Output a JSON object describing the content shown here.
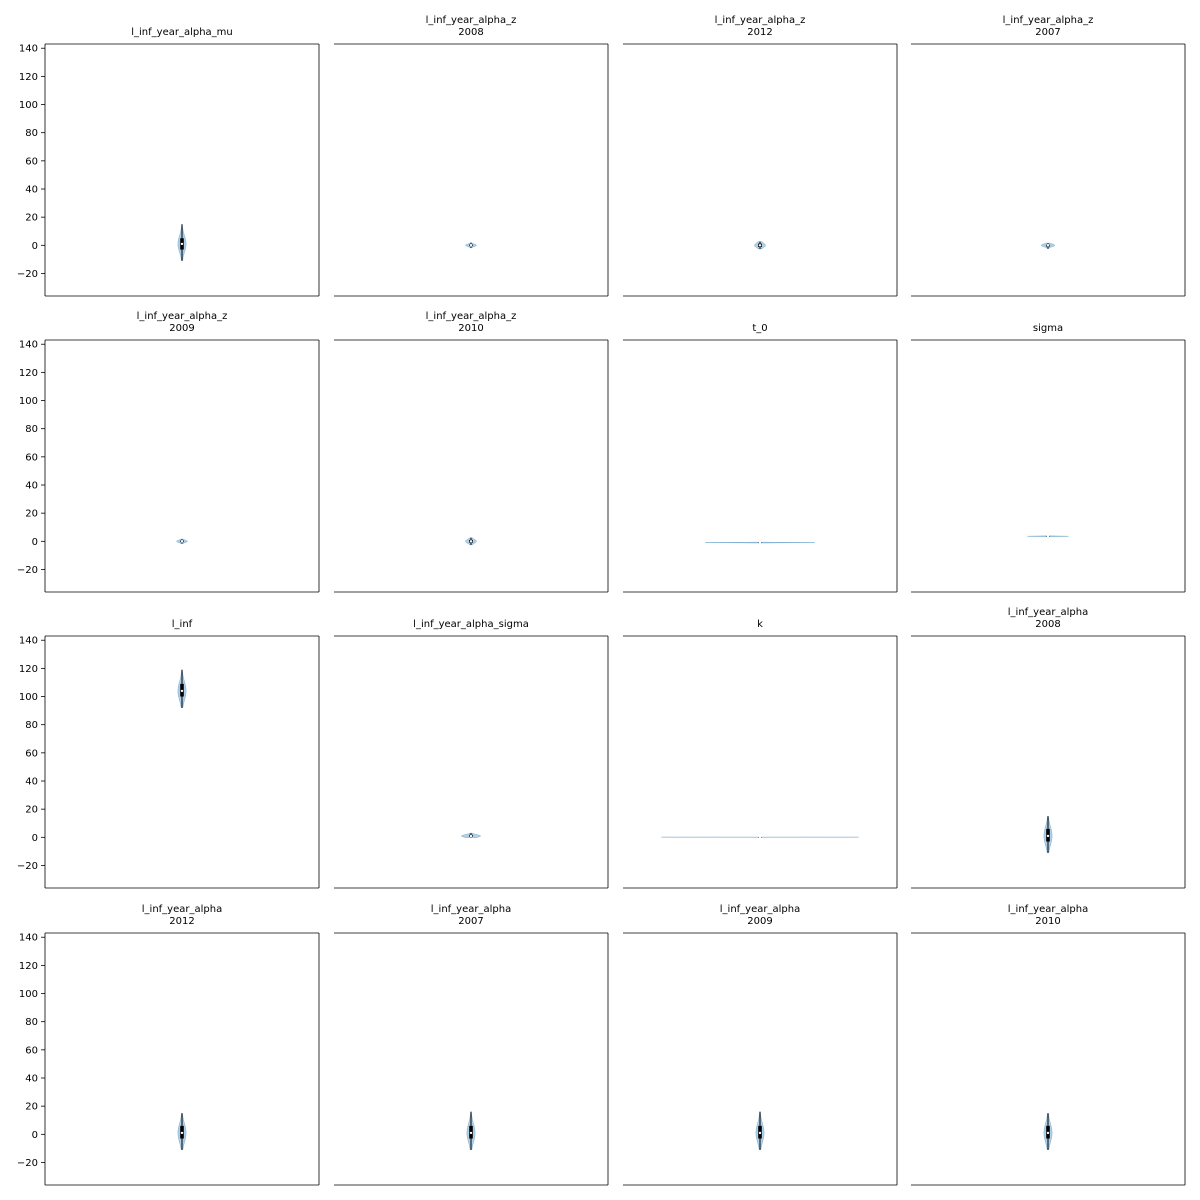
{
  "chart_data": {
    "type": "violin",
    "shared_ylim": [
      -36,
      143
    ],
    "yticks": [
      -20,
      0,
      20,
      40,
      60,
      80,
      100,
      120,
      140
    ],
    "colors": {
      "violin": "#1f77b4",
      "box": "#000000",
      "median": "#ffffff",
      "frame": "#000000"
    },
    "panels": [
      {
        "title": "l_inf_year_alpha_mu",
        "subtitle": "",
        "stats": {
          "min": -11,
          "q1": -3,
          "median": 1,
          "q3": 5,
          "max": 15,
          "width_frac": 0.03
        }
      },
      {
        "title": "l_inf_year_alpha_z",
        "subtitle": "2008",
        "stats": {
          "min": -1.8,
          "q1": -0.6,
          "median": 0,
          "q3": 0.6,
          "max": 1.8,
          "width_frac": 0.04
        }
      },
      {
        "title": "l_inf_year_alpha_z",
        "subtitle": "2012",
        "stats": {
          "min": -2.6,
          "q1": -1.2,
          "median": 0,
          "q3": 1.2,
          "max": 2.6,
          "width_frac": 0.04
        }
      },
      {
        "title": "l_inf_year_alpha_z",
        "subtitle": "2007",
        "stats": {
          "min": -2.4,
          "q1": -0.9,
          "median": 0,
          "q3": 0.5,
          "max": 1.6,
          "width_frac": 0.05
        }
      },
      {
        "title": "l_inf_year_alpha_z",
        "subtitle": "2009",
        "stats": {
          "min": -1.6,
          "q1": -0.6,
          "median": 0,
          "q3": 0.6,
          "max": 1.6,
          "width_frac": 0.04
        }
      },
      {
        "title": "l_inf_year_alpha_z",
        "subtitle": "2010",
        "stats": {
          "min": -2.5,
          "q1": -1.0,
          "median": 0,
          "q3": 1.0,
          "max": 2.5,
          "width_frac": 0.04
        }
      },
      {
        "title": "t_0",
        "subtitle": "",
        "stats": {
          "min": -1.2,
          "q1": -1.0,
          "median": -0.9,
          "q3": -0.8,
          "max": -0.6,
          "width_frac": 0.4
        }
      },
      {
        "title": "sigma",
        "subtitle": "",
        "stats": {
          "min": 3.3,
          "q1": 3.5,
          "median": 3.6,
          "q3": 3.7,
          "max": 3.9,
          "width_frac": 0.15
        }
      },
      {
        "title": "l_inf",
        "subtitle": "",
        "stats": {
          "min": 92,
          "q1": 100,
          "median": 104,
          "q3": 109,
          "max": 119,
          "width_frac": 0.03
        }
      },
      {
        "title": "l_inf_year_alpha_sigma",
        "subtitle": "",
        "stats": {
          "min": -0.2,
          "q1": 0.4,
          "median": 0.9,
          "q3": 1.8,
          "max": 3.0,
          "width_frac": 0.07
        }
      },
      {
        "title": "k",
        "subtitle": "",
        "stats": {
          "min": 0.1,
          "q1": 0.12,
          "median": 0.14,
          "q3": 0.16,
          "max": 0.18,
          "width_frac": 0.72
        }
      },
      {
        "title": "l_inf_year_alpha",
        "subtitle": "2008",
        "stats": {
          "min": -11,
          "q1": -3,
          "median": 1,
          "q3": 6,
          "max": 15,
          "width_frac": 0.03
        }
      },
      {
        "title": "l_inf_year_alpha",
        "subtitle": "2012",
        "stats": {
          "min": -11,
          "q1": -3,
          "median": 1,
          "q3": 6,
          "max": 15,
          "width_frac": 0.03
        }
      },
      {
        "title": "l_inf_year_alpha",
        "subtitle": "2007",
        "stats": {
          "min": -11,
          "q1": -3,
          "median": 1,
          "q3": 6,
          "max": 16,
          "width_frac": 0.03
        }
      },
      {
        "title": "l_inf_year_alpha",
        "subtitle": "2009",
        "stats": {
          "min": -11,
          "q1": -3,
          "median": 1,
          "q3": 6,
          "max": 16,
          "width_frac": 0.03
        }
      },
      {
        "title": "l_inf_year_alpha",
        "subtitle": "2010",
        "stats": {
          "min": -11,
          "q1": -3,
          "median": 1,
          "q3": 6,
          "max": 15,
          "width_frac": 0.03
        }
      }
    ]
  }
}
